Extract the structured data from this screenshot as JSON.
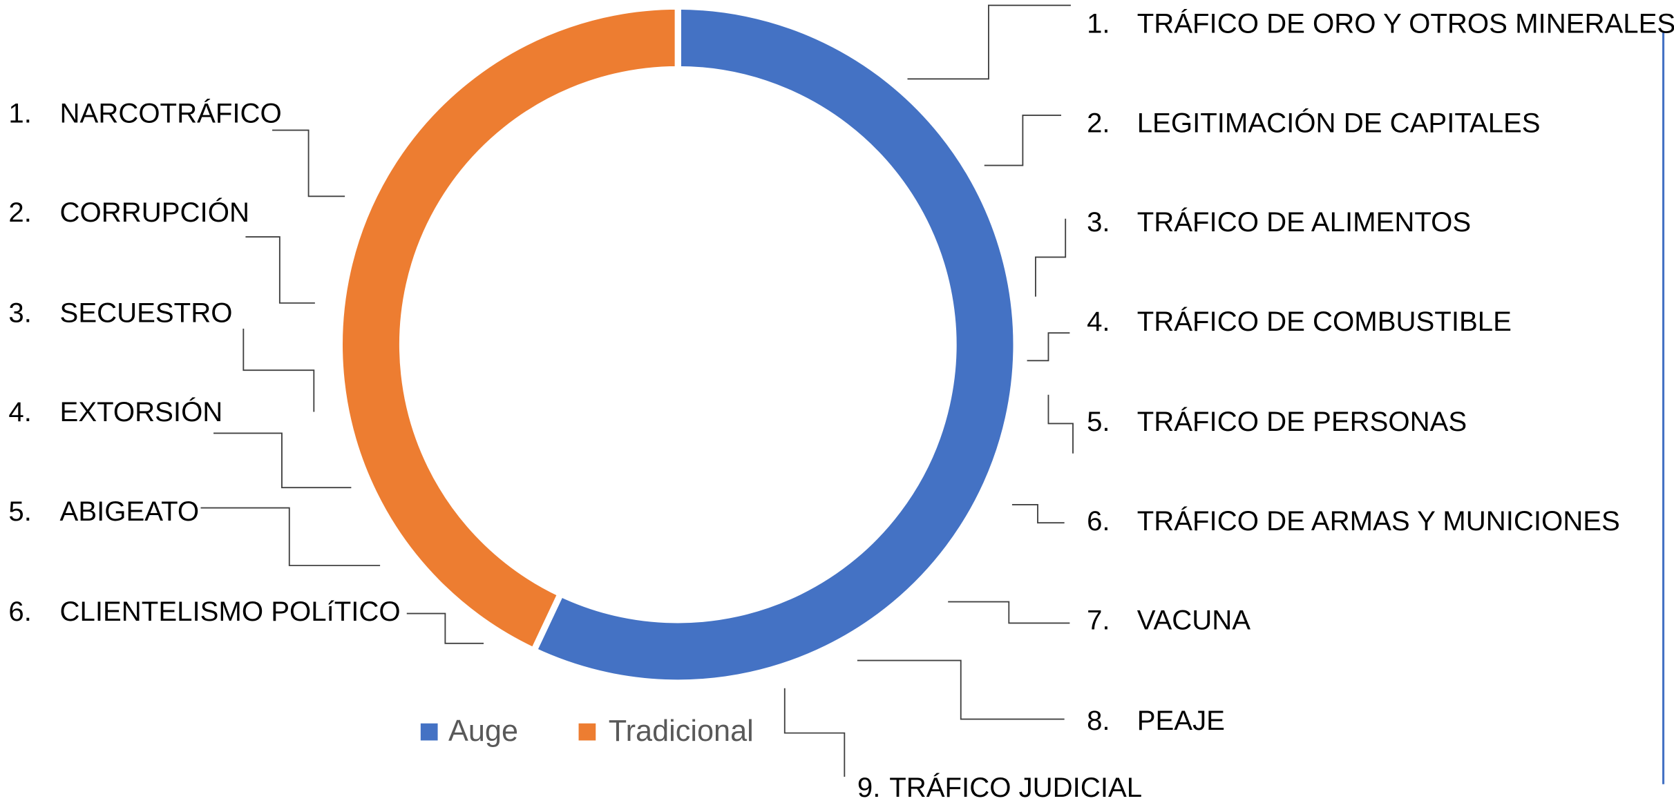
{
  "chart_data": {
    "type": "donut",
    "categories": [
      "Auge",
      "Tradicional"
    ],
    "values": [
      57,
      43
    ],
    "colors": [
      "#4472c4",
      "#ed7d31"
    ],
    "legend": "bottom",
    "annotations_left": [
      {
        "number": "1.",
        "text": "NARCOTRÁFICO"
      },
      {
        "number": "2.",
        "text": "CORRUPCIÓN"
      },
      {
        "number": "3.",
        "text": "SECUESTRO"
      },
      {
        "number": "4.",
        "text": "EXTORSIÓN"
      },
      {
        "number": "5.",
        "text": "ABIGEATO"
      },
      {
        "number": "6.",
        "text": "CLIENTELISMO POLíTICO"
      }
    ],
    "annotations_right": [
      {
        "number": "1.",
        "text": "TRÁFICO DE ORO Y OTROS MINERALES"
      },
      {
        "number": "2.",
        "text": "LEGITIMACIÓN DE CAPITALES"
      },
      {
        "number": "3.",
        "text": "TRÁFICO DE ALIMENTOS"
      },
      {
        "number": "4.",
        "text": "TRÁFICO DE  COMBUSTIBLE"
      },
      {
        "number": "5.",
        "text": "TRÁFICO DE PERSONAS"
      },
      {
        "number": "6.",
        "text": "TRÁFICO DE ARMAS Y MUNICIONES"
      },
      {
        "number": "7.",
        "text": "VACUNA"
      },
      {
        "number": "8.",
        "text": "PEAJE"
      },
      {
        "number": "9.",
        "text": "TRÁFICO JUDICIAL"
      }
    ]
  }
}
